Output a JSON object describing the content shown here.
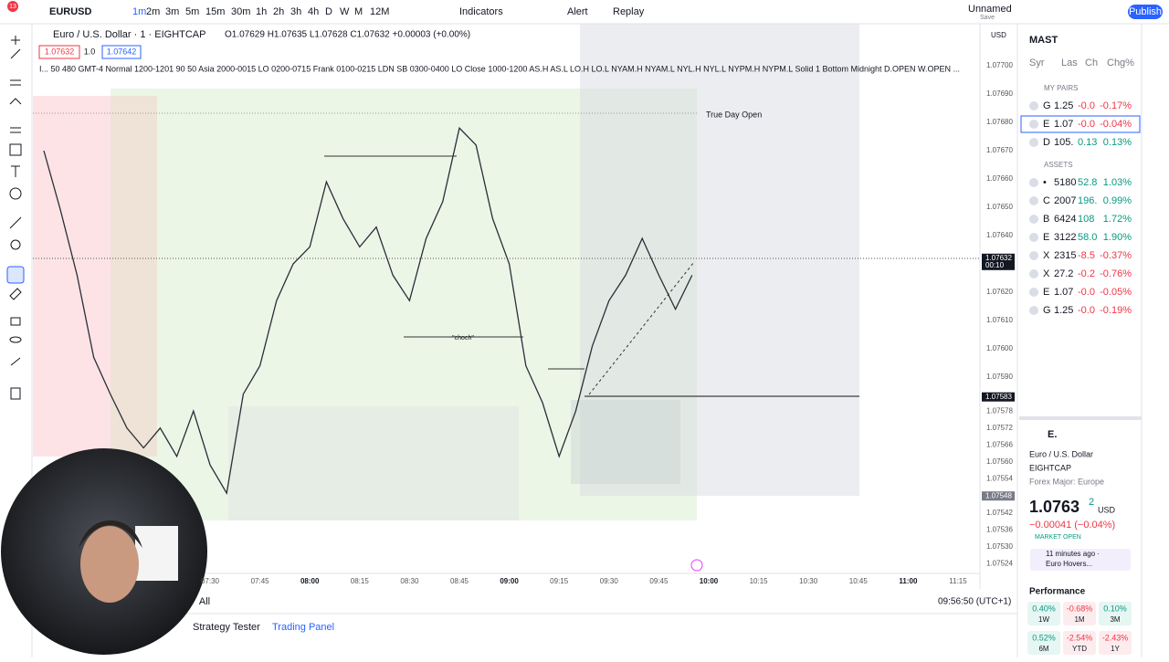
{
  "top_bar": {
    "badge": "13",
    "symbol": "EURUSD",
    "intervals": [
      "1m",
      "2m",
      "3m",
      "5m",
      "15m",
      "30m",
      "1h",
      "2h",
      "3h",
      "4h",
      "D",
      "W",
      "M",
      "12M"
    ],
    "indicators": "Indicators",
    "alert": "Alert",
    "replay": "Replay",
    "layout_name": "Unnamed",
    "layout_status": "Save",
    "publish": "Publish"
  },
  "legend": {
    "title": "Euro / U.S. Dollar · 1 · EIGHTCAP",
    "ohlc": "O1.07629 H1.07635 L1.07628 C1.07632 +0.00003 (+0.00%)",
    "bid": "1.07632",
    "spread": "1.0",
    "ask": "1.07642",
    "indicator": "I... 50 480 GMT-4 Normal 1200-1201 90 50 Asia 2000-0015 LO 0200-0715 Frank 0100-0215 LDN SB 0300-0400 LO Close 1000-1200 AS.H AS.L LO.H LO.L NYAM.H NYAM.L NYL.H NYL.L NYPM.H NYPM.L Solid 1 Bottom Midnight D.OPEN W.OPEN ..."
  },
  "chart": {
    "currency": "USD",
    "price_labels": [
      "1.07700",
      "1.07690",
      "1.07680",
      "1.07670",
      "1.07660",
      "1.07650",
      "1.07640",
      "1.07620",
      "1.07610",
      "1.07600",
      "1.07590",
      "1.07578",
      "1.07572",
      "1.07566",
      "1.07560",
      "1.07554",
      "1.07542",
      "1.07536",
      "1.07530",
      "1.07524"
    ],
    "current_price": "1.07632",
    "countdown": "00:10",
    "level_1": "1.07583",
    "level_2": "1.07548",
    "time_labels": [
      "07:30",
      "07:45",
      "08:00",
      "08:15",
      "08:30",
      "08:45",
      "09:00",
      "09:15",
      "09:30",
      "09:45",
      "10:00",
      "10:15",
      "10:30",
      "10:45",
      "11:00",
      "11:15"
    ],
    "annotations": [
      "True Day Open",
      "\"choch\""
    ],
    "price_trace": {
      "times": [
        "06:40",
        "06:45",
        "06:50",
        "06:55",
        "07:00",
        "07:05",
        "07:10",
        "07:15",
        "07:20",
        "07:25",
        "07:30",
        "07:35",
        "07:40",
        "07:45",
        "07:50",
        "07:55",
        "08:00",
        "08:05",
        "08:10",
        "08:15",
        "08:20",
        "08:25",
        "08:30",
        "08:35",
        "08:40",
        "08:45",
        "08:50",
        "08:55",
        "09:00",
        "09:05",
        "09:10",
        "09:15",
        "09:20",
        "09:25",
        "09:30",
        "09:35",
        "09:40",
        "09:45",
        "09:50",
        "09:55"
      ],
      "prices": [
        1.0767,
        1.07649,
        1.07626,
        1.07597,
        1.07584,
        1.07572,
        1.07565,
        1.07572,
        1.07562,
        1.07578,
        1.07559,
        1.07549,
        1.07584,
        1.07594,
        1.07617,
        1.0763,
        1.07636,
        1.07659,
        1.07646,
        1.07636,
        1.07643,
        1.07626,
        1.07617,
        1.07639,
        1.07652,
        1.07678,
        1.07672,
        1.07646,
        1.0763,
        1.07594,
        1.07581,
        1.07562,
        1.07578,
        1.07601,
        1.07617,
        1.07626,
        1.07639,
        1.07626,
        1.07614,
        1.07626
      ]
    }
  },
  "watchlist": {
    "name": "MAST",
    "columns": [
      "Syr",
      "Las",
      "Ch",
      "Chg%"
    ],
    "section_1": "MY PAIRS",
    "pairs": [
      {
        "symbol": "G",
        "last": "1.25",
        "change": "-0.0",
        "change_pct": "-0.17%"
      },
      {
        "symbol": "E",
        "last": "1.07",
        "change": "-0.0",
        "change_pct": "-0.04%"
      },
      {
        "symbol": "D",
        "last": "105.",
        "change": "0.13",
        "change_pct": "0.13%"
      }
    ],
    "section_2": "ASSETS",
    "assets": [
      {
        "symbol": "•",
        "last": "5180",
        "change": "52.8",
        "change_pct": "1.03%"
      },
      {
        "symbol": "C",
        "last": "2007",
        "change": "196.",
        "change_pct": "0.99%"
      },
      {
        "symbol": "B",
        "last": "6424",
        "change": "108",
        "change_pct": "1.72%"
      },
      {
        "symbol": "E",
        "last": "3122",
        "change": "58.0",
        "change_pct": "1.90%"
      },
      {
        "symbol": "X",
        "last": "2315",
        "change": "-8.5",
        "change_pct": "-0.37%"
      },
      {
        "symbol": "X",
        "last": "27.2",
        "change": "-0.2",
        "change_pct": "-0.76%"
      },
      {
        "symbol": "E",
        "last": "1.07",
        "change": "-0.0",
        "change_pct": "-0.05%"
      },
      {
        "symbol": "G",
        "last": "1.25",
        "change": "-0.0",
        "change_pct": "-0.19%"
      }
    ]
  },
  "details": {
    "short_name": "E.",
    "name": "Euro / U.S. Dollar",
    "exchange": "EIGHTCAP",
    "category": "Forex Major: Europe",
    "price": "1.0763",
    "price_last_digit": "2",
    "currency": "USD",
    "change": "−0.00041 (−0.04%)",
    "status": "MARKET OPEN",
    "news_time": "11 minutes ago ·",
    "news_title": "Euro Hovers...",
    "performance_title": "Performance",
    "performance": [
      {
        "value": "0.40%",
        "period": "1W"
      },
      {
        "value": "-0.68%",
        "period": "1M"
      },
      {
        "value": "0.10%",
        "period": "3M"
      },
      {
        "value": "0.52%",
        "period": "6M"
      },
      {
        "value": "-2.54%",
        "period": "YTD"
      },
      {
        "value": "-2.43%",
        "period": "1Y"
      }
    ]
  },
  "bottom": {
    "range": "All",
    "timestamp": "09:56:50 (UTC+1)",
    "tabs": [
      "Strategy Tester",
      "Trading Panel"
    ]
  }
}
